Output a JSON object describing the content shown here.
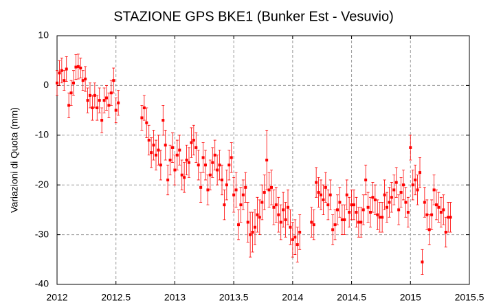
{
  "chart_data": {
    "type": "scatter",
    "title": "STAZIONE GPS BKE1 (Bunker Est - Vesuvio)",
    "y_label": "Variazioni di Quota (mm)",
    "xlim": [
      2012,
      2015.5
    ],
    "xticks": [
      2012,
      2012.5,
      2013,
      2013.5,
      2014,
      2014.5,
      2015,
      2015.5
    ],
    "ylim": [
      -40,
      10
    ],
    "yticks": [
      -40,
      -30,
      -20,
      -10,
      0,
      10
    ],
    "grid": true,
    "series": [
      {
        "color": "#ff0000",
        "x": [
          2012,
          2012.02,
          2012.04,
          2012.06,
          2012.08,
          2012.1,
          2012.12,
          2012.14,
          2012.16,
          2012.18,
          2012.2,
          2012.22,
          2012.24,
          2012.26,
          2012.28,
          2012.3,
          2012.32,
          2012.34,
          2012.36,
          2012.38,
          2012.4,
          2012.42,
          2012.44,
          2012.46,
          2012.48,
          2012.5,
          2012.52,
          2012.72,
          2012.74,
          2012.76,
          2012.78,
          2012.8,
          2012.82,
          2012.84,
          2012.86,
          2012.88,
          2012.9,
          2012.92,
          2012.94,
          2012.96,
          2012.98,
          2013,
          2013.02,
          2013.04,
          2013.06,
          2013.08,
          2013.1,
          2013.12,
          2013.14,
          2013.16,
          2013.18,
          2013.2,
          2013.22,
          2013.24,
          2013.26,
          2013.28,
          2013.3,
          2013.32,
          2013.34,
          2013.36,
          2013.38,
          2013.4,
          2013.42,
          2013.44,
          2013.46,
          2013.48,
          2013.5,
          2013.52,
          2013.54,
          2013.56,
          2013.58,
          2013.6,
          2013.62,
          2013.64,
          2013.66,
          2013.68,
          2013.7,
          2013.72,
          2013.74,
          2013.76,
          2013.78,
          2013.8,
          2013.82,
          2013.84,
          2013.86,
          2013.88,
          2013.9,
          2013.92,
          2013.94,
          2013.96,
          2013.98,
          2014,
          2014.02,
          2014.04,
          2014.06,
          2014.16,
          2014.18,
          2014.2,
          2014.22,
          2014.24,
          2014.26,
          2014.28,
          2014.3,
          2014.32,
          2014.34,
          2014.36,
          2014.38,
          2014.4,
          2014.42,
          2014.44,
          2014.46,
          2014.48,
          2014.5,
          2014.52,
          2014.54,
          2014.56,
          2014.58,
          2014.6,
          2014.62,
          2014.64,
          2014.66,
          2014.68,
          2014.7,
          2014.72,
          2014.74,
          2014.76,
          2014.78,
          2014.8,
          2014.82,
          2014.84,
          2014.86,
          2014.88,
          2014.9,
          2014.92,
          2014.94,
          2014.96,
          2014.98,
          2015,
          2015.02,
          2015.04,
          2015.06,
          2015.08,
          2015.1,
          2015.12,
          2015.14,
          2015.16,
          2015.18,
          2015.2,
          2015.22,
          2015.24,
          2015.26,
          2015.28,
          2015.3,
          2015.32,
          2015.34
        ],
        "values": [
          0.5,
          2.5,
          3,
          1,
          3.3,
          -4,
          -1.5,
          0.5,
          3.7,
          3.8,
          3.5,
          1,
          1.3,
          -3,
          -2,
          -4.5,
          -2,
          -4.5,
          -3,
          -7,
          -3,
          -2.5,
          -4,
          -1.5,
          1,
          -5,
          -3.5,
          -6.5,
          -4.5,
          -7.5,
          -11,
          -13.5,
          -12,
          -14,
          -13,
          -16,
          -7,
          -12,
          -19,
          -15,
          -12.5,
          -17,
          -14,
          -13,
          -18,
          -18.5,
          -15,
          -15.5,
          -11.5,
          -11,
          -12.5,
          -16,
          -20.5,
          -14.5,
          -16,
          -21,
          -18,
          -15.5,
          -14,
          -17,
          -16,
          -19,
          -24,
          -20,
          -16,
          -14.5,
          -22,
          -21,
          -28,
          -24,
          -22,
          -20.5,
          -27.5,
          -30,
          -29.5,
          -28.5,
          -26,
          -26.5,
          -23.5,
          -21.5,
          -15,
          -21,
          -20.5,
          -24.5,
          -24,
          -26,
          -27.5,
          -25,
          -27,
          -24.5,
          -28.5,
          -31,
          -30.5,
          -32,
          -29.5,
          -27.5,
          -28,
          -19.5,
          -21.5,
          -22,
          -23,
          -20.5,
          -24,
          -22,
          -29,
          -28,
          -25,
          -23.5,
          -27,
          -27,
          -22,
          -25.5,
          -24,
          -24,
          -25.5,
          -27.5,
          -27.5,
          -25,
          -19,
          -24.5,
          -25.5,
          -22.5,
          -23,
          -26,
          -26.5,
          -26.5,
          -22,
          -24.5,
          -23.5,
          -22.5,
          -21,
          -19.5,
          -25,
          -21.5,
          -20,
          -23.5,
          -25.5,
          -12.5,
          -20,
          -19,
          -21,
          -17.5,
          -35.5,
          -23.5,
          -26,
          -29,
          -26,
          -21,
          -24,
          -24.5,
          -25.5,
          -25,
          -29.5,
          -26.5,
          -26.5
        ],
        "errors": [
          2.5,
          2.5,
          2.5,
          2,
          2.5,
          2.5,
          2.5,
          2.5,
          2.5,
          2.5,
          2,
          2,
          2.5,
          2.5,
          2.5,
          2.5,
          2.5,
          2.5,
          2.5,
          2.5,
          2.5,
          2.5,
          2.5,
          2.5,
          2.5,
          2.5,
          2.5,
          2.5,
          2.5,
          3,
          3,
          3,
          3,
          3,
          3,
          3,
          3,
          3,
          3,
          3,
          3,
          3,
          3,
          3,
          3,
          3,
          3,
          3,
          3,
          3,
          3,
          3,
          3,
          3,
          3,
          3,
          3,
          3,
          3,
          3,
          3,
          3,
          3,
          3,
          3,
          3,
          3.5,
          3.5,
          3,
          3.5,
          3,
          3,
          4,
          4.5,
          4,
          3.5,
          3.5,
          3.5,
          3.5,
          3.5,
          6,
          3.5,
          3.5,
          3.5,
          3.5,
          3.5,
          3.5,
          3.5,
          3.5,
          3.5,
          3.5,
          3.5,
          3.5,
          3.5,
          3.5,
          3,
          3,
          3,
          3,
          3,
          3,
          3,
          3,
          3,
          3,
          3,
          3,
          3,
          3,
          3,
          3,
          3,
          3,
          3,
          3,
          3,
          3,
          3,
          3,
          3,
          3,
          3,
          3,
          3,
          3,
          3,
          3,
          3,
          3,
          3,
          3,
          3,
          3,
          3,
          3,
          3,
          3,
          2.5,
          3,
          3,
          3,
          3,
          2.5,
          3,
          3,
          3,
          3,
          3,
          3,
          3,
          3,
          3,
          3,
          3,
          3
        ]
      }
    ]
  }
}
